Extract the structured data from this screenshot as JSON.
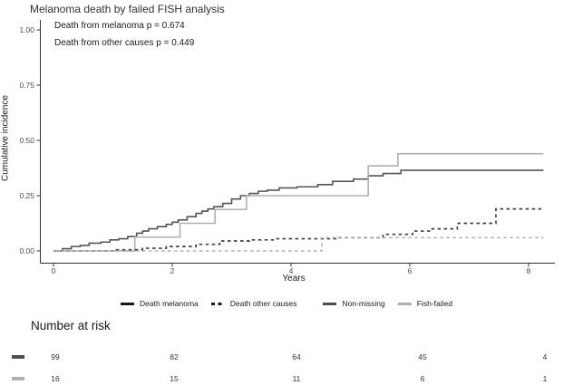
{
  "title": "Melanoma death by failed FISH analysis",
  "annotations": {
    "melanoma_p": "Death from melanoma p = 0.674",
    "other_p": "Death from other causes p = 0.449"
  },
  "axes": {
    "y_label": "Cumulative incidence",
    "x_label": "Years",
    "y_tick_labels": [
      "0.00",
      "0.25",
      "0.50",
      "0.75",
      "1.00"
    ],
    "x_tick_labels": [
      "0",
      "2",
      "4",
      "6",
      "8"
    ]
  },
  "legend": {
    "items": [
      {
        "label": "Death melanoma",
        "line": "solid",
        "color": "#1a1a1a"
      },
      {
        "label": "Death other causes",
        "line": "dashed",
        "color": "#1a1a1a"
      },
      {
        "label": "Non-missing",
        "line": "solid",
        "color": "#4d4d4d"
      },
      {
        "label": "Fish-failed",
        "line": "solid",
        "color": "#b0b0b0"
      }
    ]
  },
  "chart_data": {
    "type": "line",
    "subtype": "step-cumulative-incidence",
    "title": "Melanoma death by failed FISH analysis",
    "xlabel": "Years",
    "ylabel": "Cumulative incidence",
    "xlim": [
      0,
      8.6
    ],
    "ylim": [
      0,
      1.0
    ],
    "x_ticks": [
      0,
      2,
      4,
      6,
      8
    ],
    "y_ticks": [
      0,
      0.25,
      0.5,
      0.75,
      1.0
    ],
    "grid": false,
    "legend_position": "bottom",
    "series": [
      {
        "name": "Death melanoma — Non-missing",
        "color": "#555555",
        "dash": "solid",
        "width": 1.6,
        "points": [
          [
            0,
            0
          ],
          [
            0.15,
            0.01
          ],
          [
            0.3,
            0.02
          ],
          [
            0.45,
            0.025
          ],
          [
            0.6,
            0.035
          ],
          [
            0.8,
            0.04
          ],
          [
            0.95,
            0.05
          ],
          [
            1.1,
            0.055
          ],
          [
            1.25,
            0.065
          ],
          [
            1.4,
            0.08
          ],
          [
            1.5,
            0.09
          ],
          [
            1.6,
            0.1
          ],
          [
            1.75,
            0.11
          ],
          [
            1.9,
            0.12
          ],
          [
            2.0,
            0.13
          ],
          [
            2.1,
            0.14
          ],
          [
            2.25,
            0.155
          ],
          [
            2.4,
            0.17
          ],
          [
            2.5,
            0.18
          ],
          [
            2.6,
            0.19
          ],
          [
            2.7,
            0.2
          ],
          [
            2.85,
            0.215
          ],
          [
            3.0,
            0.235
          ],
          [
            3.15,
            0.25
          ],
          [
            3.3,
            0.26
          ],
          [
            3.45,
            0.27
          ],
          [
            3.6,
            0.275
          ],
          [
            3.8,
            0.285
          ],
          [
            4.1,
            0.29
          ],
          [
            4.45,
            0.3
          ],
          [
            4.7,
            0.315
          ],
          [
            5.05,
            0.325
          ],
          [
            5.3,
            0.34
          ],
          [
            5.55,
            0.35
          ],
          [
            5.85,
            0.365
          ],
          [
            8.25,
            0.365
          ]
        ]
      },
      {
        "name": "Death melanoma — Fish-failed",
        "color": "#b0b0b0",
        "dash": "solid",
        "width": 1.6,
        "points": [
          [
            0,
            0
          ],
          [
            1.37,
            0.0625
          ],
          [
            2.13,
            0.125
          ],
          [
            2.72,
            0.1875
          ],
          [
            3.25,
            0.25
          ],
          [
            5.3,
            0.385
          ],
          [
            5.8,
            0.44
          ],
          [
            8.25,
            0.44
          ]
        ]
      },
      {
        "name": "Death other causes — Non-missing",
        "color": "#3f3f3f",
        "dash": "dashed",
        "width": 1.7,
        "points": [
          [
            0,
            0
          ],
          [
            1.0,
            0.005
          ],
          [
            1.5,
            0.012
          ],
          [
            1.9,
            0.02
          ],
          [
            2.4,
            0.03
          ],
          [
            2.8,
            0.045
          ],
          [
            3.3,
            0.05
          ],
          [
            3.7,
            0.055
          ],
          [
            4.8,
            0.06
          ],
          [
            5.55,
            0.075
          ],
          [
            6.05,
            0.09
          ],
          [
            6.35,
            0.1
          ],
          [
            6.8,
            0.125
          ],
          [
            7.45,
            0.19
          ],
          [
            8.25,
            0.19
          ]
        ]
      },
      {
        "name": "Death other causes — Fish-failed",
        "color": "#b0b0b0",
        "dash": "dashed",
        "width": 1.5,
        "points": [
          [
            0,
            0
          ],
          [
            4.52,
            0.06
          ],
          [
            8.25,
            0.06
          ]
        ]
      }
    ]
  },
  "risk_table": {
    "heading": "Number at risk",
    "rows": [
      {
        "group": "Non-missing",
        "color": "#4d4d4d",
        "values": [
          "99",
          "82",
          "64",
          "45",
          "4"
        ]
      },
      {
        "group": "Fish-failed",
        "color": "#b0b0b0",
        "values": [
          "16",
          "15",
          "11",
          "6",
          "1"
        ]
      }
    ]
  },
  "colors": {
    "non_missing": "#555555",
    "fish_failed": "#b0b0b0",
    "axis": "#333333",
    "text": "#333333"
  }
}
